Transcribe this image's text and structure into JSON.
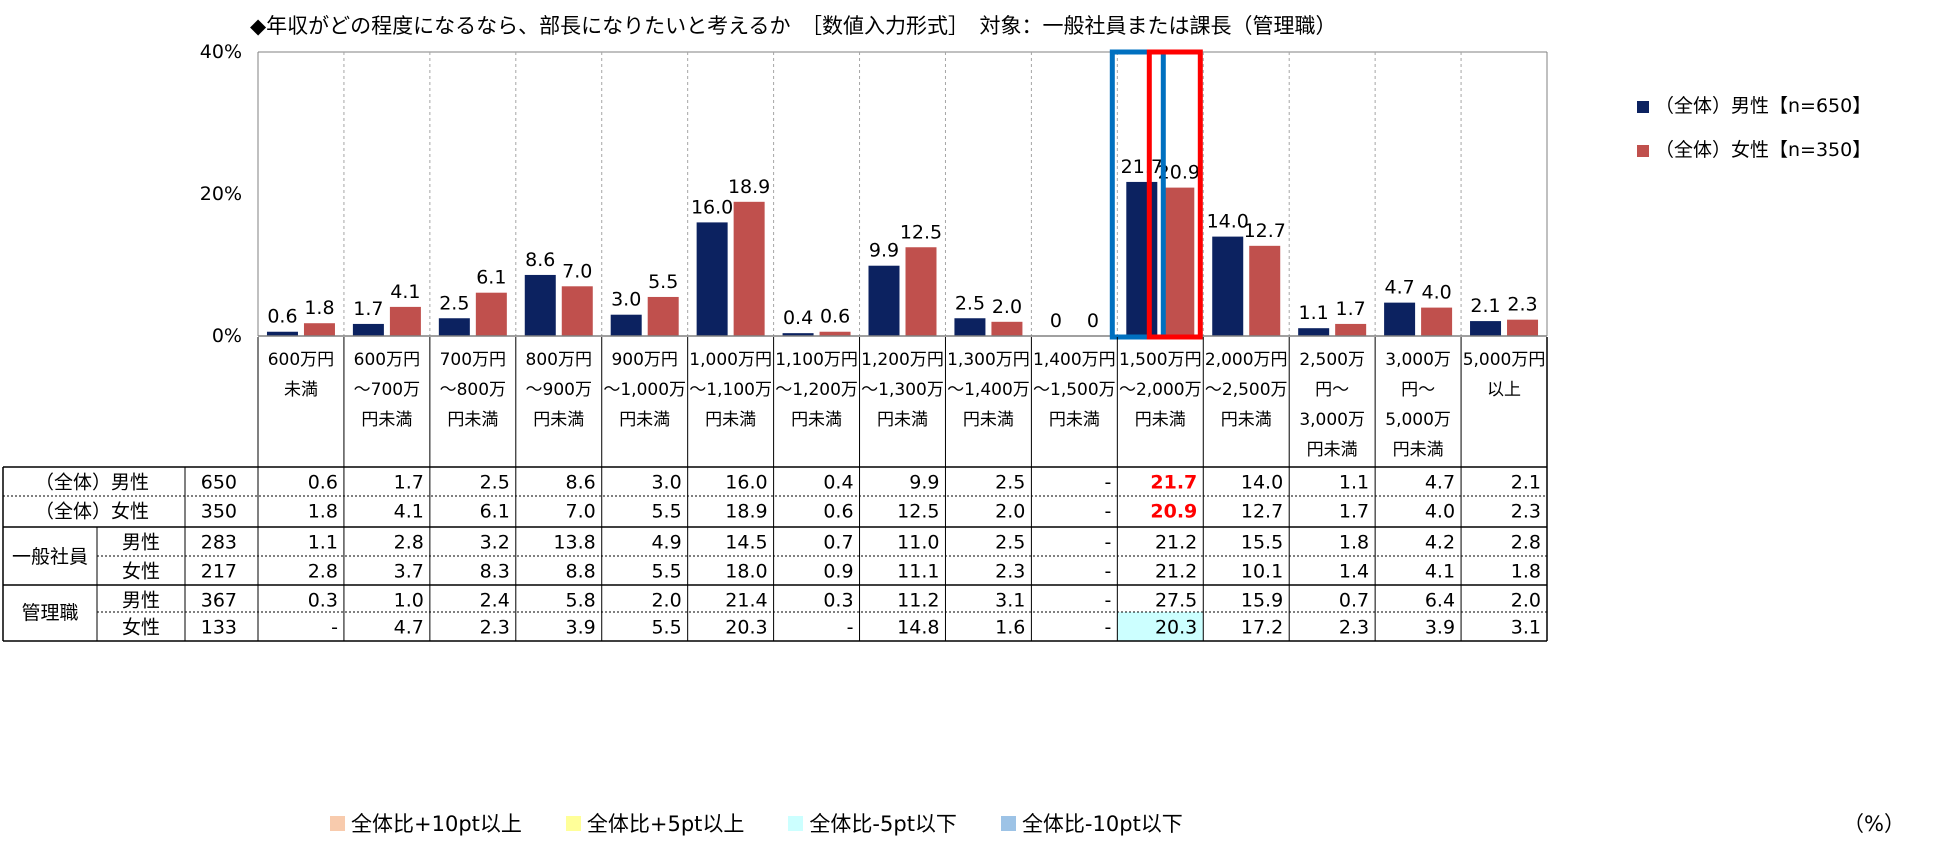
{
  "title": "◆年収がどの程度になるなら、部長になりたいと考えるか　［数値入力形式］　対象：一般社員または課長（管理職）",
  "chart_data": {
    "type": "bar",
    "categories": [
      [
        "600万円",
        "未満"
      ],
      [
        "600万円",
        "～700万",
        "円未満"
      ],
      [
        "700万円",
        "～800万",
        "円未満"
      ],
      [
        "800万円",
        "～900万",
        "円未満"
      ],
      [
        "900万円",
        "～1,000万",
        "円未満"
      ],
      [
        "1,000万円",
        "～1,100万",
        "円未満"
      ],
      [
        "1,100万円",
        "～1,200万",
        "円未満"
      ],
      [
        "1,200万円",
        "～1,300万",
        "円未満"
      ],
      [
        "1,300万円",
        "～1,400万",
        "円未満"
      ],
      [
        "1,400万円",
        "～1,500万",
        "円未満"
      ],
      [
        "1,500万円",
        "～2,000万",
        "円未満"
      ],
      [
        "2,000万円",
        "～2,500万",
        "円未満"
      ],
      [
        "2,500万",
        "円～",
        "3,000万",
        "円未満"
      ],
      [
        "3,000万",
        "円～",
        "5,000万",
        "円未満"
      ],
      [
        "5,000万円",
        "以上"
      ]
    ],
    "series": [
      {
        "name": "（全体）男性【n=650】",
        "color": "#0c2260",
        "values": [
          0.6,
          1.7,
          2.5,
          8.6,
          3.0,
          16.0,
          0.4,
          9.9,
          2.5,
          0,
          21.7,
          14.0,
          1.1,
          4.7,
          2.1
        ],
        "labels": [
          "0.6",
          "1.7",
          "2.5",
          "8.6",
          "3.0",
          "16.0",
          "0.4",
          "9.9",
          "2.5",
          "0",
          "21.7",
          "14.0",
          "1.1",
          "4.7",
          "2.1"
        ]
      },
      {
        "name": "（全体）女性【n=350】",
        "color": "#c0504d",
        "values": [
          1.8,
          4.1,
          6.1,
          7.0,
          5.5,
          18.9,
          0.6,
          12.5,
          2.0,
          0,
          20.9,
          12.7,
          1.7,
          4.0,
          2.3
        ],
        "labels": [
          "1.8",
          "4.1",
          "6.1",
          "7.0",
          "5.5",
          "18.9",
          "0.6",
          "12.5",
          "2.0",
          "0",
          "20.9",
          "12.7",
          "1.7",
          "4.0",
          "2.3"
        ]
      }
    ],
    "ylim": [
      0,
      40
    ],
    "yticks": [
      {
        "value": 0,
        "label": "0%"
      },
      {
        "value": 20,
        "label": "20%"
      },
      {
        "value": 40,
        "label": "40%"
      }
    ],
    "highlight_boxes": [
      {
        "category_index": 10,
        "series_index": 0,
        "color": "#0070c0"
      },
      {
        "category_index": 10,
        "series_index": 1,
        "color": "#ff0000"
      }
    ],
    "legend_position": "top-right"
  },
  "table": {
    "rows": [
      {
        "group": "（全体）",
        "gender": "男性",
        "n": "650",
        "cells": [
          "0.6",
          "1.7",
          "2.5",
          "8.6",
          "3.0",
          "16.0",
          "0.4",
          "9.9",
          "2.5",
          "-",
          "21.7",
          "14.0",
          "1.1",
          "4.7",
          "2.1"
        ],
        "red_cells": [
          10
        ],
        "highlight_cells": []
      },
      {
        "group": "（全体）",
        "gender": "女性",
        "n": "350",
        "cells": [
          "1.8",
          "4.1",
          "6.1",
          "7.0",
          "5.5",
          "18.9",
          "0.6",
          "12.5",
          "2.0",
          "-",
          "20.9",
          "12.7",
          "1.7",
          "4.0",
          "2.3"
        ],
        "red_cells": [
          10
        ],
        "highlight_cells": []
      },
      {
        "group": "一般社員",
        "gender": "男性",
        "n": "283",
        "cells": [
          "1.1",
          "2.8",
          "3.2",
          "13.8",
          "4.9",
          "14.5",
          "0.7",
          "11.0",
          "2.5",
          "-",
          "21.2",
          "15.5",
          "1.8",
          "4.2",
          "2.8"
        ],
        "red_cells": [],
        "highlight_cells": []
      },
      {
        "group": "一般社員",
        "gender": "女性",
        "n": "217",
        "cells": [
          "2.8",
          "3.7",
          "8.3",
          "8.8",
          "5.5",
          "18.0",
          "0.9",
          "11.1",
          "2.3",
          "-",
          "21.2",
          "10.1",
          "1.4",
          "4.1",
          "1.8"
        ],
        "red_cells": [],
        "highlight_cells": []
      },
      {
        "group": "管理職",
        "gender": "男性",
        "n": "367",
        "cells": [
          "0.3",
          "1.0",
          "2.4",
          "5.8",
          "2.0",
          "21.4",
          "0.3",
          "11.2",
          "3.1",
          "-",
          "27.5",
          "15.9",
          "0.7",
          "6.4",
          "2.0"
        ],
        "red_cells": [],
        "highlight_cells": []
      },
      {
        "group": "管理職",
        "gender": "女性",
        "n": "133",
        "cells": [
          "-",
          "4.7",
          "2.3",
          "3.9",
          "5.5",
          "20.3",
          "-",
          "14.8",
          "1.6",
          "-",
          "20.3",
          "17.2",
          "2.3",
          "3.9",
          "3.1"
        ],
        "red_cells": [],
        "highlight_cells": [
          10
        ]
      }
    ],
    "red_text_color": "#ff0000",
    "highlight_color": "#ccffff"
  },
  "footer_legend": [
    {
      "label": "全体比+10pt以上",
      "color": "#f8cbad"
    },
    {
      "label": "全体比+5pt以上",
      "color": "#ffff99"
    },
    {
      "label": "全体比-5pt以下",
      "color": "#ccffff"
    },
    {
      "label": "全体比-10pt以下",
      "color": "#9dc3e6"
    }
  ],
  "unit_label": "（%）"
}
